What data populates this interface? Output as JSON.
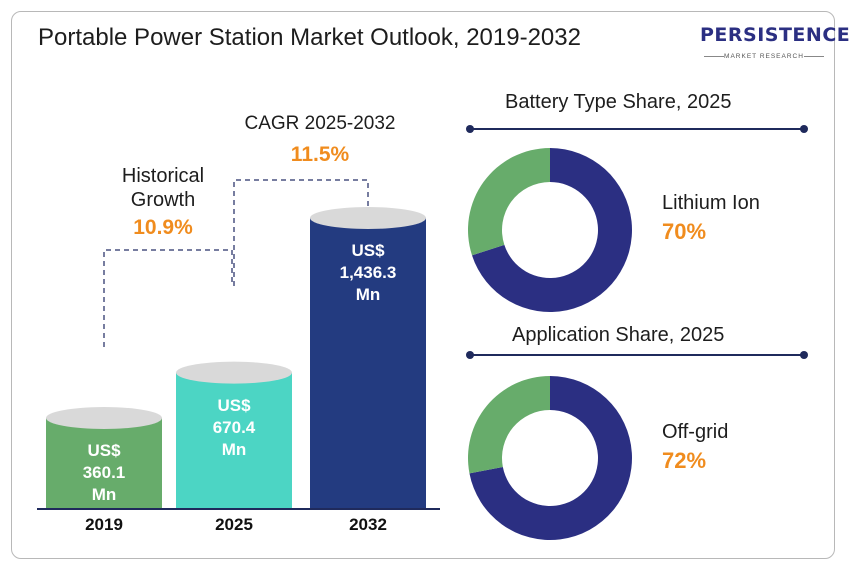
{
  "title": "Portable Power Station Market Outlook, 2019-2032",
  "logo": {
    "name": "PERSISTENCE",
    "tagline": "MARKET RESEARCH"
  },
  "colors": {
    "green": "#67ac6b",
    "teal": "#4cd5c4",
    "navy": "#233b80",
    "orange": "#f08c1e",
    "donut_navy": "#2b2f82",
    "donut_green": "#67ac6b"
  },
  "chart_data": [
    {
      "type": "bar",
      "categories": [
        "2019",
        "2025",
        "2032"
      ],
      "values": [
        360.1,
        670.4,
        1436.3
      ],
      "value_labels": [
        [
          "US$",
          "360.1",
          "Mn"
        ],
        [
          "US$",
          "670.4",
          "Mn"
        ],
        [
          "US$",
          "1,436.3",
          "Mn"
        ]
      ],
      "annotations": {
        "historical": {
          "label_line1": "Historical",
          "label_line2": "Growth",
          "value": "10.9%"
        },
        "forecast": {
          "label": "CAGR 2025-2032",
          "value": "11.5%"
        }
      }
    },
    {
      "type": "pie",
      "title": "Battery Type Share, 2025",
      "slices": [
        {
          "name": "Lithium Ion",
          "value": 70
        },
        {
          "name": "",
          "value": 30
        }
      ],
      "highlight_label": "Lithium Ion",
      "highlight_value": "70%"
    },
    {
      "type": "pie",
      "title": "Application Share, 2025",
      "slices": [
        {
          "name": "Off-grid",
          "value": 72
        },
        {
          "name": "",
          "value": 28
        }
      ],
      "highlight_label": "Off-grid",
      "highlight_value": "72%"
    }
  ]
}
